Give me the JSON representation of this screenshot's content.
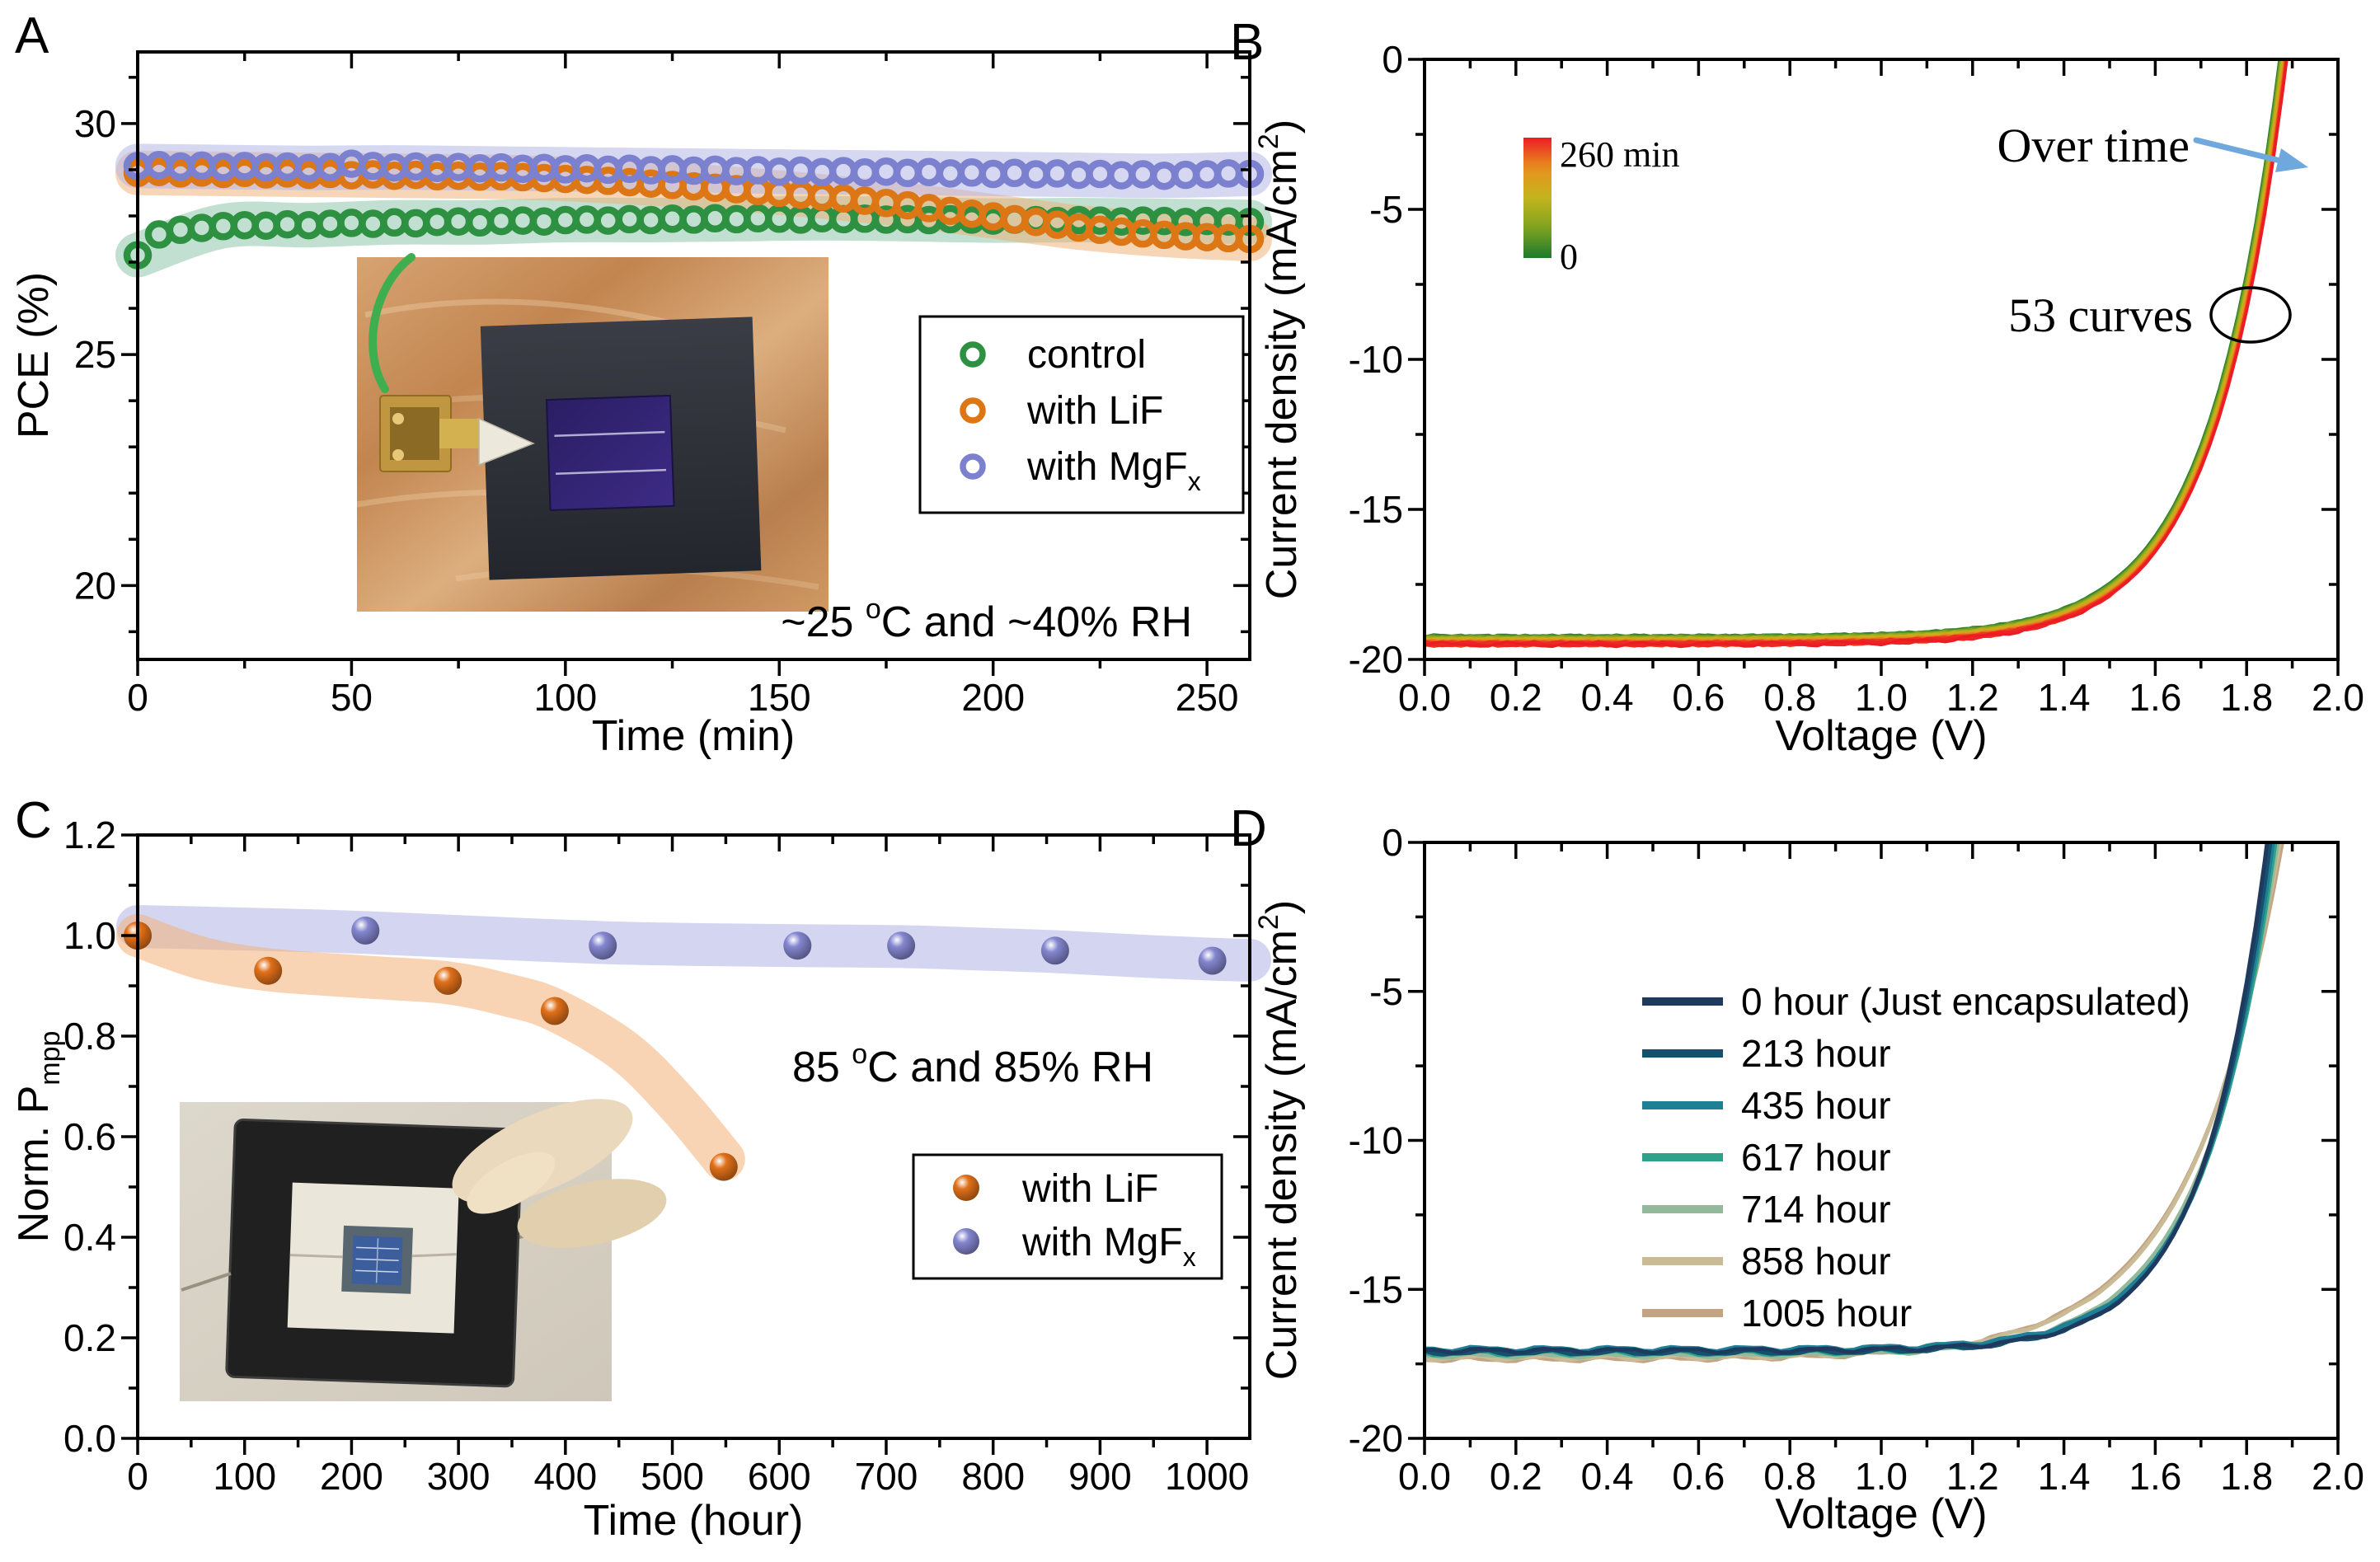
{
  "figure_type": "four-panel solar cell stability figure",
  "chart_data": [
    {
      "panel_label": "A",
      "type": "scatter",
      "xlabel": "Time (min)",
      "ylabel": "PCE (%)",
      "xlim": [
        0,
        260
      ],
      "ylim": [
        18.4,
        31.55
      ],
      "xticks": {
        "values": [
          0,
          50,
          100,
          150,
          200,
          250
        ],
        "labels": [
          "0",
          "50",
          "100",
          "150",
          "200",
          "250"
        ],
        "minor_step": 25
      },
      "yticks": {
        "values": [
          20,
          25,
          30
        ],
        "labels": [
          "20",
          "25",
          "30"
        ],
        "minor_step": 1
      },
      "grid": false,
      "annotation_parts": [
        [
          "t",
          "~25 "
        ],
        [
          "sup",
          "o"
        ],
        [
          "t",
          "C and ~40% RH"
        ]
      ],
      "legend": {
        "position": "mid-right",
        "items": [
          {
            "parts": [
              [
                "t",
                "control"
              ]
            ],
            "color": "#2e9141"
          },
          {
            "parts": [
              [
                "t",
                "with LiF"
              ]
            ],
            "color": "#dd7615"
          },
          {
            "parts": [
              [
                "t",
                "with MgF"
              ],
              [
                "sub",
                "x"
              ]
            ],
            "color": "#7b80cf"
          }
        ]
      },
      "series": [
        {
          "name": "control",
          "color": "#2e9141",
          "band_color": "#5fae85",
          "band_opacity": 0.38,
          "t0": 0,
          "dt": 5,
          "values": [
            27.15,
            27.6,
            27.7,
            27.74,
            27.78,
            27.8,
            27.79,
            27.82,
            27.8,
            27.83,
            27.85,
            27.83,
            27.86,
            27.84,
            27.87,
            27.88,
            27.86,
            27.89,
            27.9,
            27.88,
            27.91,
            27.92,
            27.9,
            27.93,
            27.91,
            27.94,
            27.92,
            27.95,
            27.93,
            27.95,
            27.94,
            27.92,
            27.95,
            27.93,
            27.94,
            27.92,
            27.93,
            27.91,
            27.93,
            27.92,
            27.9,
            27.92,
            27.91,
            27.89,
            27.91,
            27.9,
            27.88,
            27.9,
            27.89,
            27.87,
            27.89,
            27.88,
            27.87
          ]
        },
        {
          "name": "with LiF",
          "color": "#dd7615",
          "band_color": "#efae72",
          "band_opacity": 0.5,
          "t0": 0,
          "dt": 5,
          "values": [
            28.93,
            28.95,
            28.92,
            28.94,
            28.91,
            28.93,
            28.9,
            28.92,
            28.89,
            28.91,
            28.88,
            28.9,
            28.87,
            28.89,
            28.86,
            28.87,
            28.85,
            28.86,
            28.84,
            28.82,
            28.8,
            28.78,
            28.76,
            28.73,
            28.7,
            28.67,
            28.64,
            28.61,
            28.58,
            28.54,
            28.5,
            28.46,
            28.42,
            28.38,
            28.33,
            28.28,
            28.23,
            28.17,
            28.11,
            28.05,
            27.99,
            27.93,
            27.87,
            27.81,
            27.75,
            27.7,
            27.66,
            27.62,
            27.59,
            27.56,
            27.54,
            27.52,
            27.5
          ]
        },
        {
          "name": "with MgFx",
          "color": "#7b80cf",
          "band_color": "#b4b7e6",
          "band_opacity": 0.55,
          "t0": 0,
          "dt": 5,
          "values": [
            29.08,
            29.1,
            29.07,
            29.09,
            29.06,
            29.08,
            29.05,
            29.07,
            29.04,
            29.06,
            29.13,
            29.08,
            29.05,
            29.07,
            29.04,
            29.06,
            29.03,
            29.05,
            29.02,
            29.04,
            29.01,
            29.03,
            29.0,
            29.02,
            28.99,
            29.01,
            28.98,
            29.0,
            28.97,
            28.99,
            28.96,
            28.98,
            28.95,
            28.97,
            28.94,
            28.96,
            28.93,
            28.95,
            28.92,
            28.94,
            28.91,
            28.93,
            28.9,
            28.92,
            28.89,
            28.91,
            28.88,
            28.9,
            28.87,
            28.89,
            28.9,
            28.92,
            28.91
          ]
        }
      ]
    },
    {
      "panel_label": "B",
      "type": "line-bundle-jv",
      "xlabel": "Voltage (V)",
      "ylabel_parts": [
        [
          "t",
          "Current density (mA/cm"
        ],
        [
          "sup",
          "2"
        ],
        [
          "t",
          ")"
        ]
      ],
      "xlim": [
        0,
        2
      ],
      "ylim": [
        -20,
        0
      ],
      "xticks": {
        "values": [
          0,
          0.2,
          0.4,
          0.6,
          0.8,
          1.0,
          1.2,
          1.4,
          1.6,
          1.8,
          2.0
        ],
        "labels": [
          "0.0",
          "0.2",
          "0.4",
          "0.6",
          "0.8",
          "1.0",
          "1.2",
          "1.4",
          "1.6",
          "1.8",
          "2.0"
        ],
        "minor_step": 0.1
      },
      "yticks": {
        "values": [
          0,
          -5,
          -10,
          -15,
          -20
        ],
        "labels": [
          "0",
          "-5",
          "-10",
          "-15",
          "-20"
        ],
        "minor_step": 2.5
      },
      "grid": false,
      "colorbar": {
        "top_label": "260 min",
        "bottom_label": "0",
        "stops": [
          "#1c7a2e",
          "#7fa31f",
          "#c3b41d",
          "#e8921e",
          "#ec1c24"
        ]
      },
      "annotations": {
        "over_time": "Over time",
        "curve_count": "53 curves"
      },
      "arrow_color": "#6fa8dc",
      "bundle": {
        "count": 53,
        "time_start_min": 0,
        "time_end_min": 260,
        "jsc_start": 19.25,
        "jsc_end": 19.5,
        "vcross_start": 1.872,
        "vcross_end": 1.888,
        "diode_k": 6.4
      }
    },
    {
      "panel_label": "C",
      "type": "scatter",
      "xlabel": "Time (hour)",
      "ylabel_parts": [
        [
          "t",
          "Norm. P"
        ],
        [
          "sub",
          "mpp"
        ]
      ],
      "xlim": [
        0,
        1040
      ],
      "ylim": [
        0,
        1.2
      ],
      "xticks": {
        "values": [
          0,
          100,
          200,
          300,
          400,
          500,
          600,
          700,
          800,
          900,
          1000
        ],
        "labels": [
          "0",
          "100",
          "200",
          "300",
          "400",
          "500",
          "600",
          "700",
          "800",
          "900",
          "1000"
        ],
        "minor_step": 50
      },
      "yticks": {
        "values": [
          0,
          0.2,
          0.4,
          0.6,
          0.8,
          1.0,
          1.2
        ],
        "labels": [
          "0.0",
          "0.2",
          "0.4",
          "0.6",
          "0.8",
          "1.0",
          "1.2"
        ],
        "minor_step": 0.1
      },
      "grid": false,
      "annotation_parts": [
        [
          "t",
          "85 "
        ],
        [
          "sup",
          "o"
        ],
        [
          "t",
          "C and 85% RH"
        ]
      ],
      "legend": {
        "position": "bottom-right",
        "items": [
          {
            "parts": [
              [
                "t",
                "with LiF"
              ]
            ],
            "color": "#e0701a"
          },
          {
            "parts": [
              [
                "t",
                "with MgF"
              ],
              [
                "sub",
                "x"
              ]
            ],
            "color": "#8486cf"
          }
        ]
      },
      "series": [
        {
          "name": "with MgFx",
          "color": "#8486cf",
          "band_color": "#b7bae7",
          "band_opacity": 0.6,
          "points": [
            [
              0,
              1.0
            ],
            [
              213,
              1.01
            ],
            [
              435,
              0.98
            ],
            [
              617,
              0.98
            ],
            [
              714,
              0.98
            ],
            [
              858,
              0.97
            ],
            [
              1005,
              0.95
            ]
          ],
          "band": [
            [
              0,
              1.018
            ],
            [
              120,
              1.012
            ],
            [
              213,
              1.006
            ],
            [
              320,
              0.996
            ],
            [
              435,
              0.986
            ],
            [
              530,
              0.982
            ],
            [
              617,
              0.98
            ],
            [
              714,
              0.978
            ],
            [
              790,
              0.973
            ],
            [
              858,
              0.968
            ],
            [
              930,
              0.96
            ],
            [
              1005,
              0.953
            ],
            [
              1040,
              0.951
            ]
          ]
        },
        {
          "name": "with LiF",
          "color": "#e0701a",
          "band_color": "#f2b079",
          "band_opacity": 0.55,
          "points": [
            [
              0,
              1.0
            ],
            [
              122,
              0.93
            ],
            [
              290,
              0.91
            ],
            [
              390,
              0.85
            ],
            [
              548,
              0.54
            ]
          ],
          "band": [
            [
              0,
              1.0
            ],
            [
              60,
              0.955
            ],
            [
              122,
              0.932
            ],
            [
              210,
              0.918
            ],
            [
              290,
              0.906
            ],
            [
              345,
              0.882
            ],
            [
              390,
              0.852
            ],
            [
              455,
              0.77
            ],
            [
              505,
              0.665
            ],
            [
              548,
              0.555
            ]
          ]
        }
      ]
    },
    {
      "panel_label": "D",
      "type": "line-jv",
      "xlabel": "Voltage (V)",
      "ylabel_parts": [
        [
          "t",
          "Current density (mA/cm"
        ],
        [
          "sup",
          "2"
        ],
        [
          "t",
          ")"
        ]
      ],
      "xlim": [
        0,
        2
      ],
      "ylim": [
        -20,
        0
      ],
      "xticks": {
        "values": [
          0,
          0.2,
          0.4,
          0.6,
          0.8,
          1.0,
          1.2,
          1.4,
          1.6,
          1.8,
          2.0
        ],
        "labels": [
          "0.0",
          "0.2",
          "0.4",
          "0.6",
          "0.8",
          "1.0",
          "1.2",
          "1.4",
          "1.6",
          "1.8",
          "2.0"
        ],
        "minor_step": 0.1
      },
      "yticks": {
        "values": [
          0,
          -5,
          -10,
          -15,
          -20
        ],
        "labels": [
          "0",
          "-5",
          "-10",
          "-15",
          "-20"
        ],
        "minor_step": 2.5
      },
      "grid": false,
      "curves": [
        {
          "label": "0 hour (Just encapsulated)",
          "color": "#1f3a5f",
          "jsc": 17.05,
          "diode_k": 7.2,
          "vcross": 1.845
        },
        {
          "label": "213 hour",
          "color": "#15516f",
          "jsc": 17.12,
          "diode_k": 6.9,
          "vcross": 1.852
        },
        {
          "label": "435 hour",
          "color": "#1f7f94",
          "jsc": 17.0,
          "diode_k": 6.7,
          "vcross": 1.858
        },
        {
          "label": "617 hour",
          "color": "#2da189",
          "jsc": 17.15,
          "diode_k": 6.5,
          "vcross": 1.863
        },
        {
          "label": "714 hour",
          "color": "#93b99b",
          "jsc": 17.22,
          "diode_k": 6.0,
          "vcross": 1.868
        },
        {
          "label": "858 hour",
          "color": "#cabb97",
          "jsc": 17.3,
          "diode_k": 5.2,
          "vcross": 1.873
        },
        {
          "label": "1005 hour",
          "color": "#c4a383",
          "jsc": 17.35,
          "diode_k": 5.0,
          "vcross": 1.878
        }
      ]
    }
  ]
}
